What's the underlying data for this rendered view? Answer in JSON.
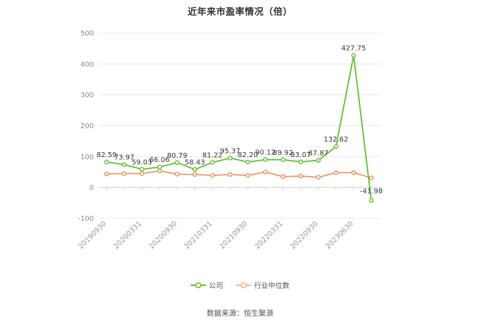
{
  "chart_data": {
    "type": "line",
    "title": "近年来市盈率情况（倍）",
    "xlabel": "",
    "ylabel": "",
    "ylim": [
      -100,
      500
    ],
    "yticks": [
      -100,
      0,
      100,
      200,
      300,
      400,
      500
    ],
    "x_tick_labels": [
      "20190930",
      "20200331",
      "20200930",
      "20210331",
      "20210930",
      "20220331",
      "20220930",
      "20230630"
    ],
    "grid": true,
    "legend_position": "bottom",
    "series": [
      {
        "name": "公司",
        "color": "#5cc12b",
        "values": [
          82.59,
          73.97,
          59.03,
          66.06,
          80.79,
          58.43,
          81.22,
          95.37,
          82.2,
          90.12,
          89.92,
          83.07,
          87.87,
          132.62,
          427.75,
          -41.98
        ],
        "labels": [
          "82.59",
          "73.97",
          "59.03",
          "66.06",
          "80.79",
          "58.43",
          "81.22",
          "95.37",
          "82.20",
          "90.12",
          "89.92",
          "83.07",
          "87.87",
          "132.62",
          "427.75",
          "-41.98"
        ]
      },
      {
        "name": "行业中位数",
        "color": "#f58a52",
        "values": [
          44,
          45,
          45,
          54,
          43,
          42,
          39,
          42,
          39,
          50,
          35,
          37,
          33,
          48,
          48,
          31
        ]
      }
    ]
  },
  "footer": {
    "source": "数据来源：恒生聚源"
  }
}
